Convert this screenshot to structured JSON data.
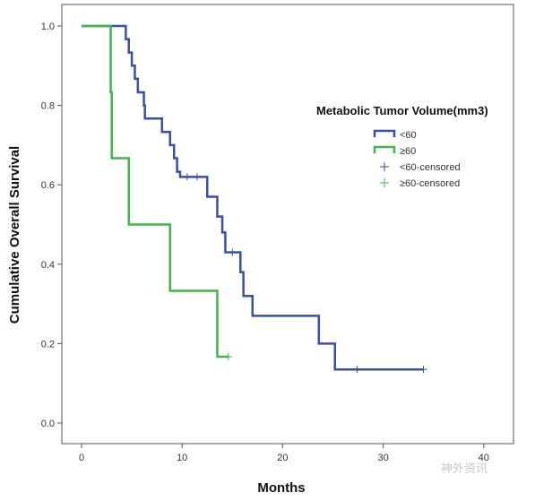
{
  "watermark": "神外资讯",
  "chart_data": {
    "type": "line",
    "step": true,
    "xlabel": "Months",
    "ylabel": "Cumulative Overall Survival",
    "xlim": [
      -2,
      42
    ],
    "ylim": [
      -0.04,
      1.05
    ],
    "x_ticks": [
      0,
      10,
      20,
      30,
      40
    ],
    "y_ticks": [
      0.0,
      0.2,
      0.4,
      0.6,
      0.8,
      1.0
    ],
    "grid": false,
    "legend": {
      "title": "Metabolic Tumor Volume(mm3)",
      "placement": "right",
      "entries": [
        {
          "label": "<60",
          "kind": "line",
          "color": "#3b4fa8"
        },
        {
          "label": "≥60",
          "kind": "line",
          "color": "#3cb84a"
        },
        {
          "label": "<60-censored",
          "kind": "censor",
          "color": "#3b4fa8"
        },
        {
          "label": "≥60-censored",
          "kind": "censor",
          "color": "#3cb84a"
        }
      ]
    },
    "series": [
      {
        "label": "<60",
        "color": "#3b4fa8",
        "steps": [
          [
            0,
            1.0
          ],
          [
            4.4,
            0.967
          ],
          [
            4.7,
            0.933
          ],
          [
            5.0,
            0.9
          ],
          [
            5.3,
            0.867
          ],
          [
            5.6,
            0.833
          ],
          [
            6.2,
            0.8
          ],
          [
            6.3,
            0.767
          ],
          [
            8.0,
            0.733
          ],
          [
            8.8,
            0.7
          ],
          [
            9.2,
            0.667
          ],
          [
            9.5,
            0.633
          ],
          [
            9.8,
            0.62
          ],
          [
            12.5,
            0.57
          ],
          [
            13.5,
            0.52
          ],
          [
            14.0,
            0.48
          ],
          [
            14.3,
            0.43
          ],
          [
            15.8,
            0.38
          ],
          [
            16.1,
            0.32
          ],
          [
            17.0,
            0.27
          ],
          [
            23.6,
            0.2
          ],
          [
            25.2,
            0.135
          ],
          [
            34.0,
            0.135
          ]
        ],
        "censored": [
          [
            10.5,
            0.62
          ],
          [
            11.5,
            0.62
          ],
          [
            15.0,
            0.43
          ],
          [
            27.4,
            0.135
          ],
          [
            34.0,
            0.135
          ]
        ]
      },
      {
        "label": "≥60",
        "color": "#3cb84a",
        "steps": [
          [
            0,
            1.0
          ],
          [
            2.9,
            0.833
          ],
          [
            3.0,
            0.667
          ],
          [
            4.7,
            0.5
          ],
          [
            8.8,
            0.333
          ],
          [
            13.5,
            0.167
          ],
          [
            14.6,
            0.167
          ]
        ],
        "censored": [
          [
            14.6,
            0.167
          ]
        ]
      }
    ]
  }
}
